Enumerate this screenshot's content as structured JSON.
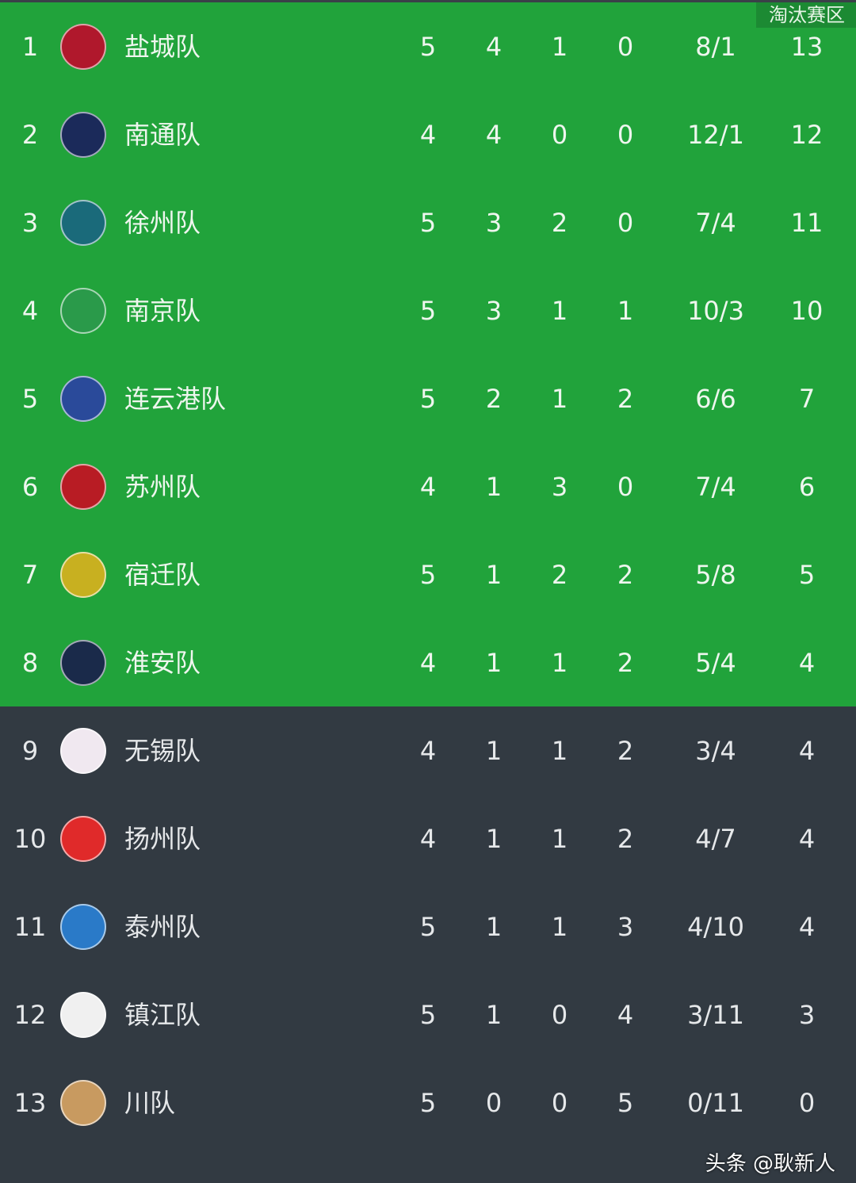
{
  "zone_label": "淘汰赛区",
  "colors": {
    "promotion": "#21a33b",
    "elimination": "#323a42"
  },
  "rows": [
    {
      "rank": "1",
      "team": "盐城队",
      "p": "5",
      "w": "4",
      "d": "1",
      "l": "0",
      "goals": "8/1",
      "pts": "13",
      "zone": "promotion",
      "logo": "#b0182c"
    },
    {
      "rank": "2",
      "team": "南通队",
      "p": "4",
      "w": "4",
      "d": "0",
      "l": "0",
      "goals": "12/1",
      "pts": "12",
      "zone": "promotion",
      "logo": "#1b2a5a"
    },
    {
      "rank": "3",
      "team": "徐州队",
      "p": "5",
      "w": "3",
      "d": "2",
      "l": "0",
      "goals": "7/4",
      "pts": "11",
      "zone": "promotion",
      "logo": "#1a6a7a"
    },
    {
      "rank": "4",
      "team": "南京队",
      "p": "5",
      "w": "3",
      "d": "1",
      "l": "1",
      "goals": "10/3",
      "pts": "10",
      "zone": "promotion",
      "logo": "#2a9a4a"
    },
    {
      "rank": "5",
      "team": "连云港队",
      "p": "5",
      "w": "2",
      "d": "1",
      "l": "2",
      "goals": "6/6",
      "pts": "7",
      "zone": "promotion",
      "logo": "#2a4a9a"
    },
    {
      "rank": "6",
      "team": "苏州队",
      "p": "4",
      "w": "1",
      "d": "3",
      "l": "0",
      "goals": "7/4",
      "pts": "6",
      "zone": "promotion",
      "logo": "#b81c24"
    },
    {
      "rank": "7",
      "team": "宿迁队",
      "p": "5",
      "w": "1",
      "d": "2",
      "l": "2",
      "goals": "5/8",
      "pts": "5",
      "zone": "promotion",
      "logo": "#c8b020"
    },
    {
      "rank": "8",
      "team": "淮安队",
      "p": "4",
      "w": "1",
      "d": "1",
      "l": "2",
      "goals": "5/4",
      "pts": "4",
      "zone": "promotion",
      "logo": "#1a2a4a"
    },
    {
      "rank": "9",
      "team": "无锡队",
      "p": "4",
      "w": "1",
      "d": "1",
      "l": "2",
      "goals": "3/4",
      "pts": "4",
      "zone": "elimination",
      "logo": "#f0e8f0"
    },
    {
      "rank": "10",
      "team": "扬州队",
      "p": "4",
      "w": "1",
      "d": "1",
      "l": "2",
      "goals": "4/7",
      "pts": "4",
      "zone": "elimination",
      "logo": "#e02a2a"
    },
    {
      "rank": "11",
      "team": "泰州队",
      "p": "5",
      "w": "1",
      "d": "1",
      "l": "3",
      "goals": "4/10",
      "pts": "4",
      "zone": "elimination",
      "logo": "#2a7ac8"
    },
    {
      "rank": "12",
      "team": "镇江队",
      "p": "5",
      "w": "1",
      "d": "0",
      "l": "4",
      "goals": "3/11",
      "pts": "3",
      "zone": "elimination",
      "logo": "#f0f0f0"
    },
    {
      "rank": "13",
      "team": "  川队",
      "p": "5",
      "w": "0",
      "d": "0",
      "l": "5",
      "goals": "0/11",
      "pts": "0",
      "zone": "elimination",
      "logo": "#c89a60"
    }
  ],
  "credit": "头条 @耿新人"
}
